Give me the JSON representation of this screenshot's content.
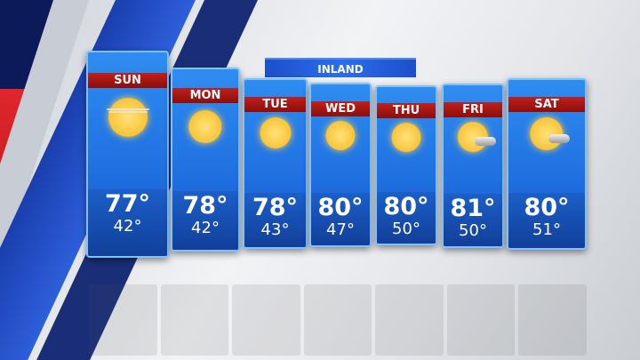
{
  "banner": {
    "label": "INLAND"
  },
  "forecast": [
    {
      "day": "SUN",
      "high": "77°",
      "low": "42°",
      "icon": "hazy-sun-icon"
    },
    {
      "day": "MON",
      "high": "78°",
      "low": "42°",
      "icon": "sun-icon"
    },
    {
      "day": "TUE",
      "high": "78°",
      "low": "43°",
      "icon": "sun-icon"
    },
    {
      "day": "WED",
      "high": "80°",
      "low": "47°",
      "icon": "sun-icon"
    },
    {
      "day": "THU",
      "high": "80°",
      "low": "50°",
      "icon": "sun-icon"
    },
    {
      "day": "FRI",
      "high": "81°",
      "low": "50°",
      "icon": "mostly-sunny-icon"
    },
    {
      "day": "SAT",
      "high": "80°",
      "low": "51°",
      "icon": "mostly-sunny-icon"
    }
  ],
  "colors": {
    "card": "#1f6fe0",
    "day_bar": "#b01a16",
    "text": "#ffffff"
  }
}
